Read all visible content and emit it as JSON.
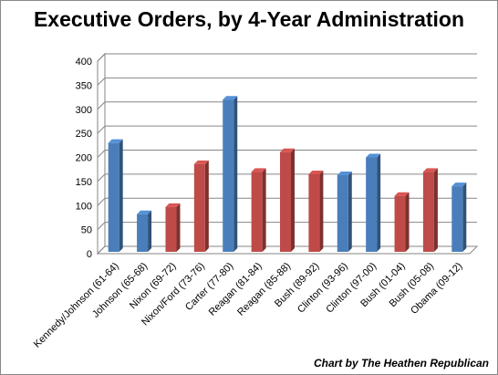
{
  "chart_data": {
    "type": "bar",
    "title": "Executive Orders, by 4-Year Administration",
    "credit": "Chart by The Heathen Republican",
    "categories": [
      "Kennedy/Johnson (61-64)",
      "Johnson (65-68)",
      "Nixon (69-72)",
      "Nixon/Ford (73-76)",
      "Carter (77-80)",
      "Reagan (81-84)",
      "Reagan (85-88)",
      "Bush (89-92)",
      "Clinton (93-96)",
      "Clinton (97-00)",
      "Bush (01-04)",
      "Bush (05-08)",
      "Obama (09-12)"
    ],
    "values": [
      230,
      82,
      97,
      186,
      320,
      170,
      211,
      165,
      163,
      200,
      120,
      170,
      140
    ],
    "party": [
      "D",
      "D",
      "R",
      "R",
      "D",
      "R",
      "R",
      "R",
      "D",
      "D",
      "R",
      "R",
      "D"
    ],
    "party_colors": {
      "D": "#4A7EBB",
      "R": "#BE4B48"
    },
    "ylim": [
      0,
      400
    ],
    "yticks": [
      0,
      50,
      100,
      150,
      200,
      250,
      300,
      350,
      400
    ],
    "grid": true,
    "legend": "none",
    "xlabel": "",
    "ylabel": ""
  }
}
